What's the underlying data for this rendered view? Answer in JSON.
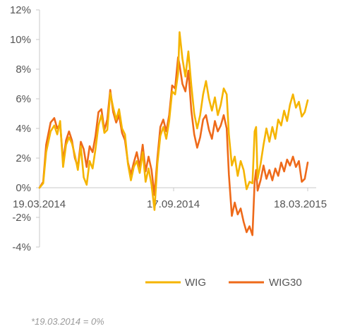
{
  "chart_data": {
    "type": "line",
    "title": "",
    "xlabel": "",
    "ylabel": "",
    "ylim": [
      -4,
      12
    ],
    "yticks": [
      12,
      10,
      8,
      6,
      4,
      2,
      0,
      -2,
      -4
    ],
    "yticklabels": [
      "12%",
      "10%",
      "8%",
      "6%",
      "4%",
      "2%",
      "0%",
      "-2%",
      "-4%"
    ],
    "xlim": [
      "2014-03-19",
      "2015-03-18"
    ],
    "xticks": [
      "2014-03-19",
      "2014-09-17",
      "2015-03-18"
    ],
    "xticklabels": [
      "19.03.2014",
      "17.09.2014",
      "18.03.2015"
    ],
    "grid": false,
    "legend_position": "bottom",
    "series": [
      {
        "name": "WIG",
        "color": "#f5b400",
        "points": [
          [
            "2014-03-19",
            0.0
          ],
          [
            "2014-03-24",
            0.3
          ],
          [
            "2014-03-28",
            2.4
          ],
          [
            "2014-04-03",
            3.8
          ],
          [
            "2014-04-08",
            4.2
          ],
          [
            "2014-04-12",
            3.6
          ],
          [
            "2014-04-16",
            4.5
          ],
          [
            "2014-04-20",
            1.4
          ],
          [
            "2014-04-24",
            2.9
          ],
          [
            "2014-04-28",
            3.4
          ],
          [
            "2014-05-02",
            3.0
          ],
          [
            "2014-05-06",
            2.2
          ],
          [
            "2014-05-10",
            1.2
          ],
          [
            "2014-05-14",
            2.8
          ],
          [
            "2014-05-18",
            0.7
          ],
          [
            "2014-05-22",
            0.2
          ],
          [
            "2014-05-26",
            1.8
          ],
          [
            "2014-05-30",
            1.3
          ],
          [
            "2014-06-03",
            2.6
          ],
          [
            "2014-06-07",
            4.2
          ],
          [
            "2014-06-11",
            4.9
          ],
          [
            "2014-06-15",
            3.7
          ],
          [
            "2014-06-19",
            3.9
          ],
          [
            "2014-06-23",
            6.4
          ],
          [
            "2014-06-27",
            5.4
          ],
          [
            "2014-07-01",
            4.6
          ],
          [
            "2014-07-05",
            5.3
          ],
          [
            "2014-07-09",
            4.0
          ],
          [
            "2014-07-13",
            3.6
          ],
          [
            "2014-07-17",
            1.6
          ],
          [
            "2014-07-21",
            0.5
          ],
          [
            "2014-07-25",
            1.4
          ],
          [
            "2014-07-29",
            1.8
          ],
          [
            "2014-08-02",
            1.0
          ],
          [
            "2014-08-06",
            2.4
          ],
          [
            "2014-08-10",
            0.4
          ],
          [
            "2014-08-14",
            1.3
          ],
          [
            "2014-08-18",
            0.2
          ],
          [
            "2014-08-22",
            -1.5
          ],
          [
            "2014-08-26",
            1.6
          ],
          [
            "2014-08-30",
            3.5
          ],
          [
            "2014-09-03",
            4.1
          ],
          [
            "2014-09-07",
            3.3
          ],
          [
            "2014-09-11",
            4.5
          ],
          [
            "2014-09-15",
            6.5
          ],
          [
            "2014-09-19",
            6.3
          ],
          [
            "2014-09-23",
            7.7
          ],
          [
            "2014-09-25",
            10.5
          ],
          [
            "2014-09-29",
            8.7
          ],
          [
            "2014-10-03",
            7.5
          ],
          [
            "2014-10-07",
            9.2
          ],
          [
            "2014-10-11",
            6.9
          ],
          [
            "2014-10-15",
            5.0
          ],
          [
            "2014-10-19",
            4.0
          ],
          [
            "2014-10-23",
            4.9
          ],
          [
            "2014-10-27",
            6.3
          ],
          [
            "2014-10-31",
            7.2
          ],
          [
            "2014-11-04",
            6.0
          ],
          [
            "2014-11-08",
            5.2
          ],
          [
            "2014-11-12",
            6.1
          ],
          [
            "2014-11-16",
            4.9
          ],
          [
            "2014-11-20",
            5.6
          ],
          [
            "2014-11-24",
            6.7
          ],
          [
            "2014-11-28",
            6.3
          ],
          [
            "2014-12-01",
            3.6
          ],
          [
            "2014-12-05",
            1.5
          ],
          [
            "2014-12-09",
            2.1
          ],
          [
            "2014-12-13",
            0.8
          ],
          [
            "2014-12-17",
            1.8
          ],
          [
            "2014-12-21",
            1.2
          ],
          [
            "2014-12-25",
            -0.1
          ],
          [
            "2014-12-29",
            0.4
          ],
          [
            "2015-01-02",
            0.3
          ],
          [
            "2015-01-05",
            3.8
          ],
          [
            "2015-01-07",
            4.1
          ],
          [
            "2015-01-09",
            0.6
          ],
          [
            "2015-01-13",
            1.6
          ],
          [
            "2015-01-17",
            2.9
          ],
          [
            "2015-01-21",
            4.0
          ],
          [
            "2015-01-25",
            3.1
          ],
          [
            "2015-01-29",
            4.1
          ],
          [
            "2015-02-02",
            3.3
          ],
          [
            "2015-02-06",
            4.6
          ],
          [
            "2015-02-10",
            4.2
          ],
          [
            "2015-02-14",
            5.2
          ],
          [
            "2015-02-18",
            4.5
          ],
          [
            "2015-02-22",
            5.6
          ],
          [
            "2015-02-26",
            6.3
          ],
          [
            "2015-03-02",
            5.4
          ],
          [
            "2015-03-06",
            5.8
          ],
          [
            "2015-03-10",
            4.8
          ],
          [
            "2015-03-14",
            5.1
          ],
          [
            "2015-03-18",
            5.9
          ]
        ]
      },
      {
        "name": "WIG30",
        "color": "#ee6a1a",
        "points": [
          [
            "2014-03-19",
            0.0
          ],
          [
            "2014-03-24",
            0.4
          ],
          [
            "2014-03-28",
            2.9
          ],
          [
            "2014-04-03",
            4.4
          ],
          [
            "2014-04-08",
            4.7
          ],
          [
            "2014-04-12",
            4.0
          ],
          [
            "2014-04-16",
            4.3
          ],
          [
            "2014-04-20",
            1.8
          ],
          [
            "2014-04-24",
            3.2
          ],
          [
            "2014-04-28",
            3.8
          ],
          [
            "2014-05-02",
            3.2
          ],
          [
            "2014-05-06",
            2.0
          ],
          [
            "2014-05-10",
            1.4
          ],
          [
            "2014-05-14",
            3.1
          ],
          [
            "2014-05-18",
            2.6
          ],
          [
            "2014-05-22",
            1.4
          ],
          [
            "2014-05-26",
            2.8
          ],
          [
            "2014-05-30",
            2.4
          ],
          [
            "2014-06-03",
            3.5
          ],
          [
            "2014-06-07",
            5.1
          ],
          [
            "2014-06-11",
            5.3
          ],
          [
            "2014-06-15",
            3.9
          ],
          [
            "2014-06-19",
            4.6
          ],
          [
            "2014-06-23",
            6.6
          ],
          [
            "2014-06-27",
            5.1
          ],
          [
            "2014-07-01",
            4.4
          ],
          [
            "2014-07-05",
            4.9
          ],
          [
            "2014-07-09",
            3.7
          ],
          [
            "2014-07-13",
            3.2
          ],
          [
            "2014-07-17",
            1.7
          ],
          [
            "2014-07-21",
            0.9
          ],
          [
            "2014-07-25",
            1.7
          ],
          [
            "2014-07-29",
            2.4
          ],
          [
            "2014-08-02",
            1.4
          ],
          [
            "2014-08-06",
            2.9
          ],
          [
            "2014-08-10",
            1.1
          ],
          [
            "2014-08-14",
            2.1
          ],
          [
            "2014-08-18",
            1.2
          ],
          [
            "2014-08-22",
            -0.5
          ],
          [
            "2014-08-26",
            2.0
          ],
          [
            "2014-08-30",
            4.1
          ],
          [
            "2014-09-03",
            4.6
          ],
          [
            "2014-09-07",
            3.8
          ],
          [
            "2014-09-11",
            4.9
          ],
          [
            "2014-09-15",
            6.9
          ],
          [
            "2014-09-19",
            6.7
          ],
          [
            "2014-09-23",
            8.8
          ],
          [
            "2014-09-25",
            8.3
          ],
          [
            "2014-09-29",
            7.0
          ],
          [
            "2014-10-03",
            6.5
          ],
          [
            "2014-10-07",
            7.9
          ],
          [
            "2014-10-11",
            5.2
          ],
          [
            "2014-10-15",
            3.6
          ],
          [
            "2014-10-19",
            2.7
          ],
          [
            "2014-10-23",
            3.4
          ],
          [
            "2014-10-27",
            4.6
          ],
          [
            "2014-10-31",
            4.9
          ],
          [
            "2014-11-04",
            3.9
          ],
          [
            "2014-11-08",
            3.3
          ],
          [
            "2014-11-12",
            4.5
          ],
          [
            "2014-11-16",
            3.8
          ],
          [
            "2014-11-20",
            4.2
          ],
          [
            "2014-11-24",
            4.9
          ],
          [
            "2014-11-28",
            4.0
          ],
          [
            "2014-12-01",
            0.9
          ],
          [
            "2014-12-05",
            -1.9
          ],
          [
            "2014-12-09",
            -1.0
          ],
          [
            "2014-12-13",
            -1.8
          ],
          [
            "2014-12-17",
            -1.4
          ],
          [
            "2014-12-21",
            -2.3
          ],
          [
            "2014-12-25",
            -3.0
          ],
          [
            "2014-12-29",
            -2.6
          ],
          [
            "2015-01-02",
            -3.2
          ],
          [
            "2015-01-05",
            0.4
          ],
          [
            "2015-01-07",
            1.2
          ],
          [
            "2015-01-09",
            -0.2
          ],
          [
            "2015-01-13",
            0.5
          ],
          [
            "2015-01-17",
            1.5
          ],
          [
            "2015-01-21",
            0.6
          ],
          [
            "2015-01-25",
            1.2
          ],
          [
            "2015-01-29",
            0.5
          ],
          [
            "2015-02-02",
            1.3
          ],
          [
            "2015-02-06",
            0.8
          ],
          [
            "2015-02-10",
            1.7
          ],
          [
            "2015-02-14",
            1.1
          ],
          [
            "2015-02-18",
            1.9
          ],
          [
            "2015-02-22",
            1.5
          ],
          [
            "2015-02-26",
            2.1
          ],
          [
            "2015-03-02",
            1.4
          ],
          [
            "2015-03-06",
            1.8
          ],
          [
            "2015-03-10",
            0.4
          ],
          [
            "2015-03-14",
            0.6
          ],
          [
            "2015-03-18",
            1.7
          ]
        ]
      }
    ]
  },
  "footnote": "*19.03.2014 = 0%"
}
